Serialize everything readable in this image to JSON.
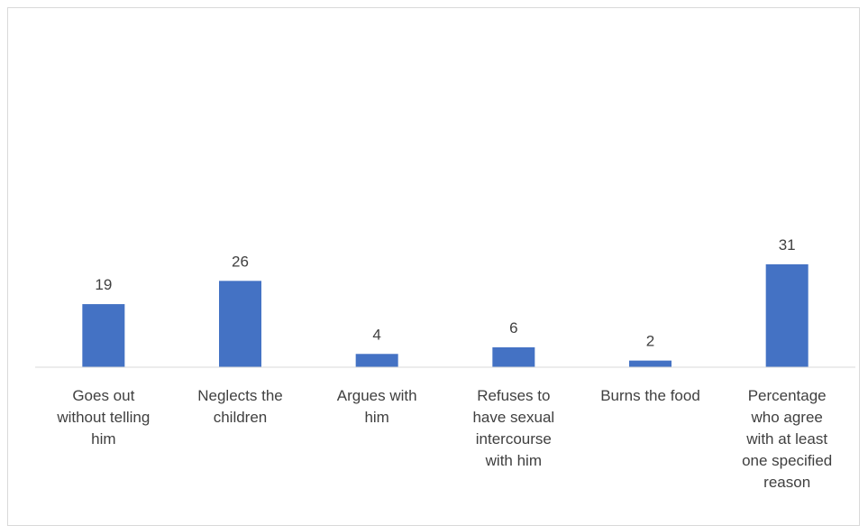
{
  "chart_data": {
    "type": "bar",
    "title": "",
    "xlabel": "",
    "ylabel": "",
    "categories": [
      [
        "Goes out",
        "without telling",
        "him"
      ],
      [
        "Neglects the",
        "children"
      ],
      [
        "Argues with",
        "him"
      ],
      [
        "Refuses to",
        "have sexual",
        "intercourse",
        "with him"
      ],
      [
        "Burns the food"
      ],
      [
        "Percentage",
        "who agree",
        "with at least",
        "one specified",
        "reason"
      ]
    ],
    "values": [
      19,
      26,
      4,
      6,
      2,
      31
    ],
    "ylim": [
      0,
      50
    ],
    "grid": false,
    "legend": "none",
    "bar_color": "#4472c4",
    "axis_color": "#d9d9d9",
    "text_color": "#404040"
  }
}
